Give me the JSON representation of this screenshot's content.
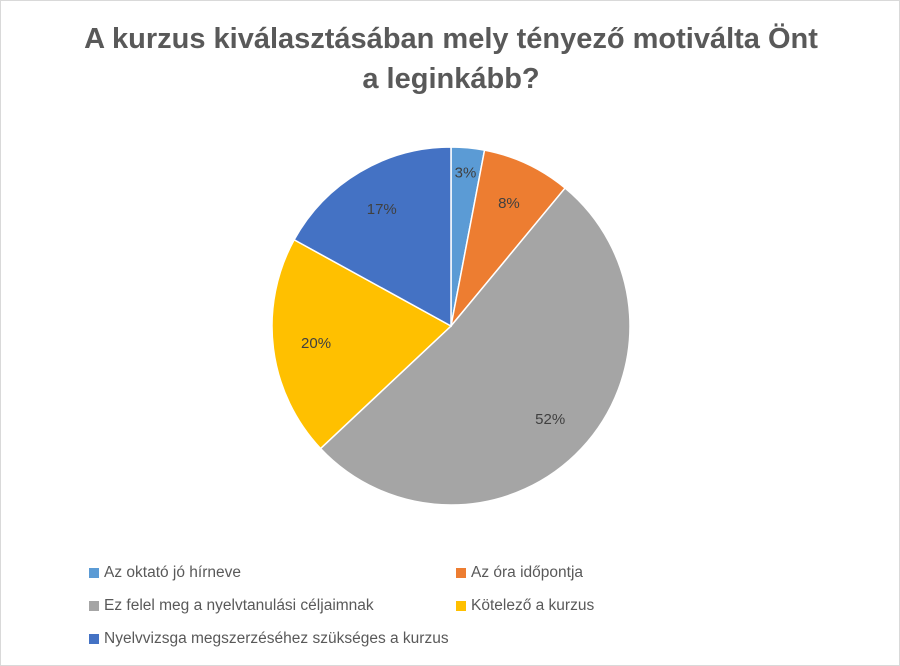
{
  "chart_data": {
    "type": "pie",
    "title_lines": [
      "A kurzus kiválasztásában mely tényező motiválta Önt",
      "a leginkább?"
    ],
    "slices": [
      {
        "label": "Az oktató jó hírneve",
        "value": 3,
        "data_label": "3%",
        "color": "#5b9bd5"
      },
      {
        "label": "Az óra időpontja",
        "value": 8,
        "data_label": "8%",
        "color": "#ed7d31"
      },
      {
        "label": "Ez felel meg a nyelvtanulási céljaimnak",
        "value": 52,
        "data_label": "52%",
        "color": "#a5a5a5"
      },
      {
        "label": "Kötelező a kurzus",
        "value": 20,
        "data_label": "20%",
        "color": "#ffc000"
      },
      {
        "label": "Nyelvvizsga megszerzéséhez szükséges a kurzus",
        "value": 17,
        "data_label": "17%",
        "color": "#4472c4"
      }
    ],
    "legend_position": "bottom"
  }
}
